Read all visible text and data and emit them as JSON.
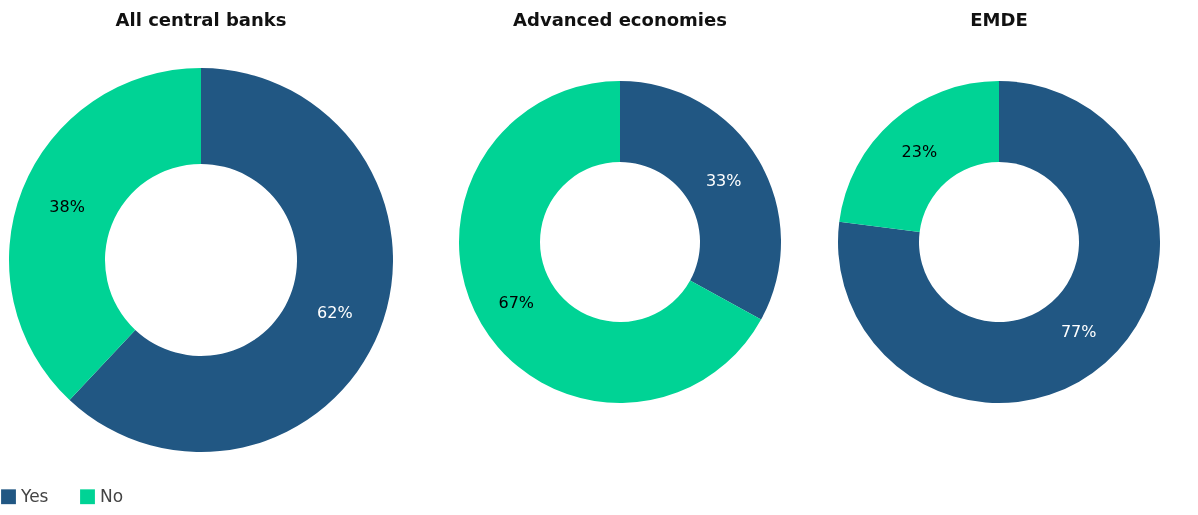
{
  "chart_data": [
    {
      "type": "donut",
      "title": "All central banks",
      "categories": [
        "Yes",
        "No"
      ],
      "values": [
        62,
        38
      ],
      "colors": [
        "#215783",
        "#00d395"
      ],
      "value_labels": [
        "62%",
        "38%"
      ],
      "legend": "bottom left"
    },
    {
      "type": "donut",
      "title": "Advanced economies",
      "categories": [
        null,
        null
      ],
      "values": [
        33,
        67
      ],
      "colors": [
        "#215783",
        "#00d395"
      ],
      "value_labels": [
        "33%",
        "67%"
      ]
    },
    {
      "type": "donut",
      "title": "EMDE",
      "categories": [
        null,
        null
      ],
      "values": [
        77,
        23
      ],
      "colors": [
        "#215783",
        "#00d395"
      ],
      "value_labels": [
        "77%",
        "23%"
      ]
    }
  ]
}
